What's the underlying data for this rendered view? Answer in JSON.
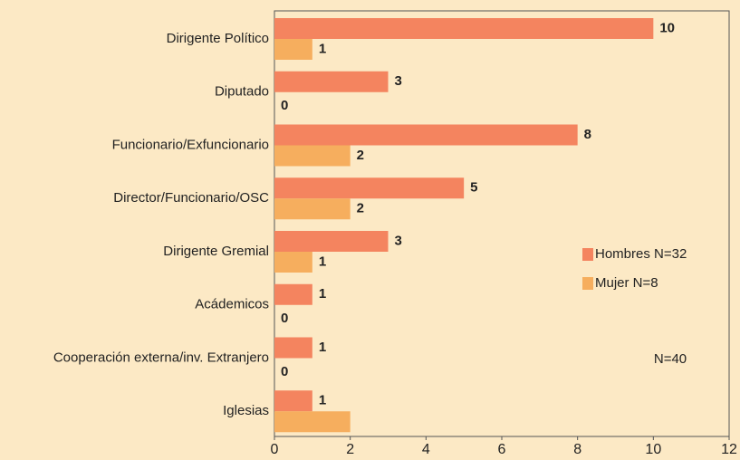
{
  "chart_data": {
    "type": "barh",
    "categories": [
      "Dirigente Político",
      "Diputado",
      "Funcionario/Exfuncionario",
      "Director/Funcionario/OSC",
      "Dirigente Gremial",
      "Acádemicos",
      "Cooperación externa/inv. Extranjero",
      "Iglesias"
    ],
    "series": [
      {
        "name": "Hombres N=32",
        "color": "#f4845f",
        "values": [
          10,
          3,
          8,
          5,
          3,
          1,
          1,
          1
        ]
      },
      {
        "name": "Mujer N=8",
        "color": "#f6ae5e",
        "values": [
          1,
          0,
          2,
          2,
          1,
          0,
          0,
          2
        ],
        "value_labels": [
          "1",
          "0",
          "2",
          "2",
          "1",
          "0",
          "0",
          null
        ]
      }
    ],
    "xlim": [
      0,
      12
    ],
    "xticks": [
      0,
      2,
      4,
      6,
      8,
      10,
      12
    ],
    "legend": "right",
    "annotations": [
      "N=40"
    ]
  }
}
